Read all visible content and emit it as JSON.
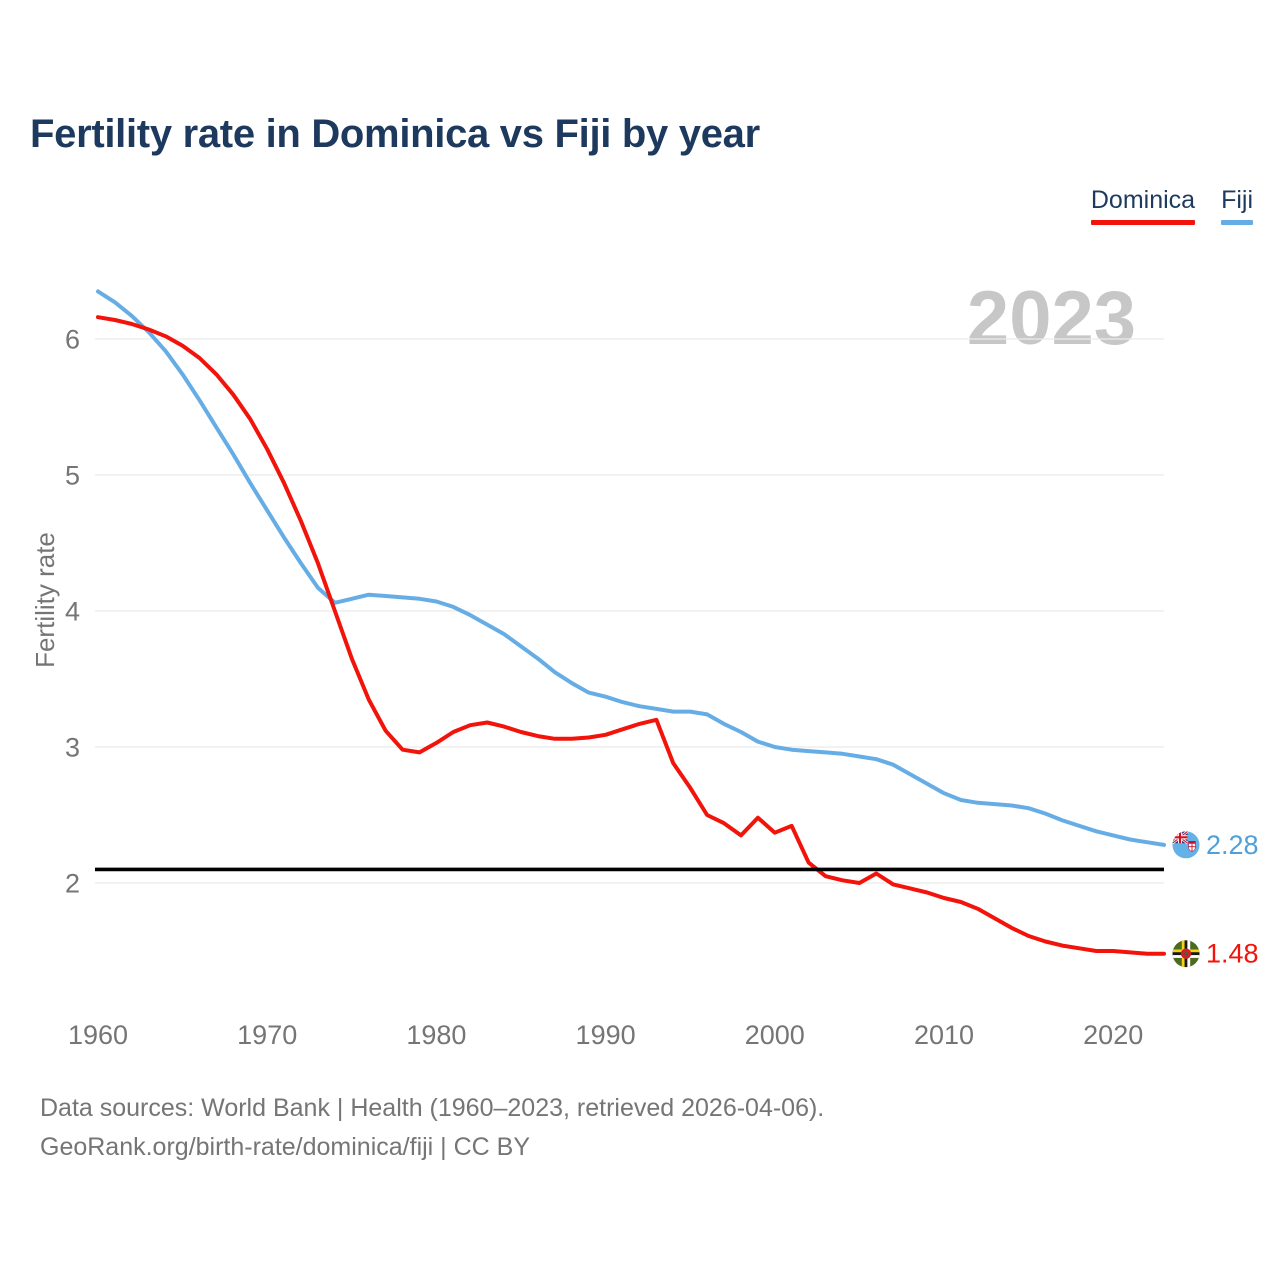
{
  "header": {
    "title": "Fertility rate in Dominica vs Fiji by year"
  },
  "legend": {
    "items": [
      {
        "label": "Dominica",
        "color": "#f2130b"
      },
      {
        "label": "Fiji",
        "color": "#67ade5"
      }
    ]
  },
  "watermark": "2023",
  "footer": {
    "line1": "Data sources: World Bank | Health (1960–2023, retrieved 2026-04-06).",
    "line2": "GeoRank.org/birth-rate/dominica/fiji | CC BY"
  },
  "chart_data": {
    "type": "line",
    "title": "Fertility rate in Dominica vs Fiji by year",
    "xlabel": "",
    "ylabel": "Fertility rate",
    "grid": "horizontal",
    "legend_position": "top-right",
    "xlim": [
      1960,
      2023
    ],
    "ylim": [
      1.3,
      6.5
    ],
    "xticks": [
      1960,
      1970,
      1980,
      1990,
      2000,
      2010,
      2020
    ],
    "yticks": [
      2,
      3,
      4,
      5,
      6
    ],
    "replacement_level_line": 2.1,
    "x": [
      1960,
      1961,
      1962,
      1963,
      1964,
      1965,
      1966,
      1967,
      1968,
      1969,
      1970,
      1971,
      1972,
      1973,
      1974,
      1975,
      1976,
      1977,
      1978,
      1979,
      1980,
      1981,
      1982,
      1983,
      1984,
      1985,
      1986,
      1987,
      1988,
      1989,
      1990,
      1991,
      1992,
      1993,
      1994,
      1995,
      1996,
      1997,
      1998,
      1999,
      2000,
      2001,
      2002,
      2003,
      2004,
      2005,
      2006,
      2007,
      2008,
      2009,
      2010,
      2011,
      2012,
      2013,
      2014,
      2015,
      2016,
      2017,
      2018,
      2019,
      2020,
      2021,
      2022,
      2023
    ],
    "series": [
      {
        "name": "Dominica",
        "color": "#f2130b",
        "label_color": "#f2130b",
        "end_label": "1.48",
        "end_value": 1.48,
        "values": [
          6.16,
          6.14,
          6.11,
          6.07,
          6.02,
          5.95,
          5.86,
          5.74,
          5.59,
          5.41,
          5.19,
          4.94,
          4.66,
          4.35,
          4.0,
          3.65,
          3.35,
          3.12,
          2.98,
          2.96,
          3.03,
          3.11,
          3.16,
          3.18,
          3.15,
          3.11,
          3.08,
          3.06,
          3.06,
          3.07,
          3.09,
          3.13,
          3.17,
          3.2,
          2.88,
          2.7,
          2.5,
          2.44,
          2.35,
          2.48,
          2.37,
          2.42,
          2.15,
          2.05,
          2.02,
          2.0,
          2.07,
          1.99,
          1.96,
          1.93,
          1.89,
          1.86,
          1.81,
          1.74,
          1.67,
          1.61,
          1.57,
          1.54,
          1.52,
          1.5,
          1.5,
          1.49,
          1.48,
          1.48
        ]
      },
      {
        "name": "Fiji",
        "color": "#67ade5",
        "label_color": "#4fa0da",
        "end_label": "2.28",
        "end_value": 2.28,
        "values": [
          6.35,
          6.27,
          6.17,
          6.05,
          5.91,
          5.74,
          5.55,
          5.35,
          5.15,
          4.94,
          4.74,
          4.54,
          4.35,
          4.17,
          4.06,
          4.09,
          4.12,
          4.11,
          4.1,
          4.09,
          4.07,
          4.03,
          3.97,
          3.9,
          3.83,
          3.74,
          3.65,
          3.55,
          3.47,
          3.4,
          3.37,
          3.33,
          3.3,
          3.28,
          3.26,
          3.26,
          3.24,
          3.17,
          3.11,
          3.04,
          3.0,
          2.98,
          2.97,
          2.96,
          2.95,
          2.93,
          2.91,
          2.87,
          2.8,
          2.73,
          2.66,
          2.61,
          2.59,
          2.58,
          2.57,
          2.55,
          2.51,
          2.46,
          2.42,
          2.38,
          2.35,
          2.32,
          2.3,
          2.28
        ]
      }
    ]
  }
}
